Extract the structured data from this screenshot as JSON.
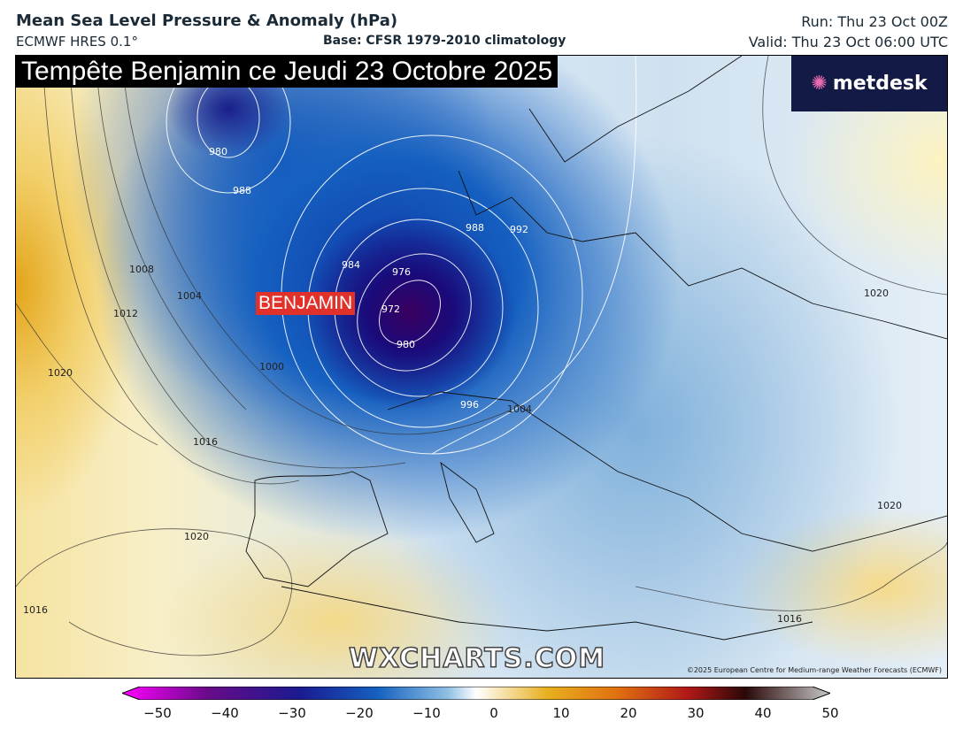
{
  "header": {
    "title": "Mean Sea Level Pressure & Anomaly (hPa)",
    "model": "ECMWF HRES 0.1°",
    "base": "Base: CFSR 1979-2010 climatology",
    "run": "Run: Thu 23 Oct 00Z",
    "valid": "Valid: Thu 23 Oct 06:00 UTC"
  },
  "map": {
    "banner": "Tempête Benjamin ce Jeudi 23 Octobre 2025",
    "storm_label": "BENJAMIN",
    "logo": "metdesk",
    "watermark": "WXCHARTS.COM",
    "copyright": "©2025 European Centre for Medium-range Weather Forecasts (ECMWF)",
    "isobar_labels": [
      "980",
      "988",
      "984",
      "976",
      "972",
      "980",
      "988",
      "992",
      "996",
      "1000",
      "1004",
      "1008",
      "1012",
      "1016",
      "1020",
      "1020",
      "1016",
      "1004",
      "1020",
      "1020",
      "1016"
    ],
    "storm_color": "#e0312a"
  },
  "colorbar": {
    "ticks": [
      "−50",
      "−40",
      "−30",
      "−20",
      "−10",
      "0",
      "10",
      "20",
      "30",
      "40",
      "50"
    ],
    "colors": [
      "#ff00ff",
      "#6a0a8a",
      "#1a1a90",
      "#1560c0",
      "#8fc0e3",
      "#ffffff",
      "#e8b020",
      "#e07010",
      "#b01818",
      "#2a0808",
      "#c8c8c8"
    ]
  }
}
